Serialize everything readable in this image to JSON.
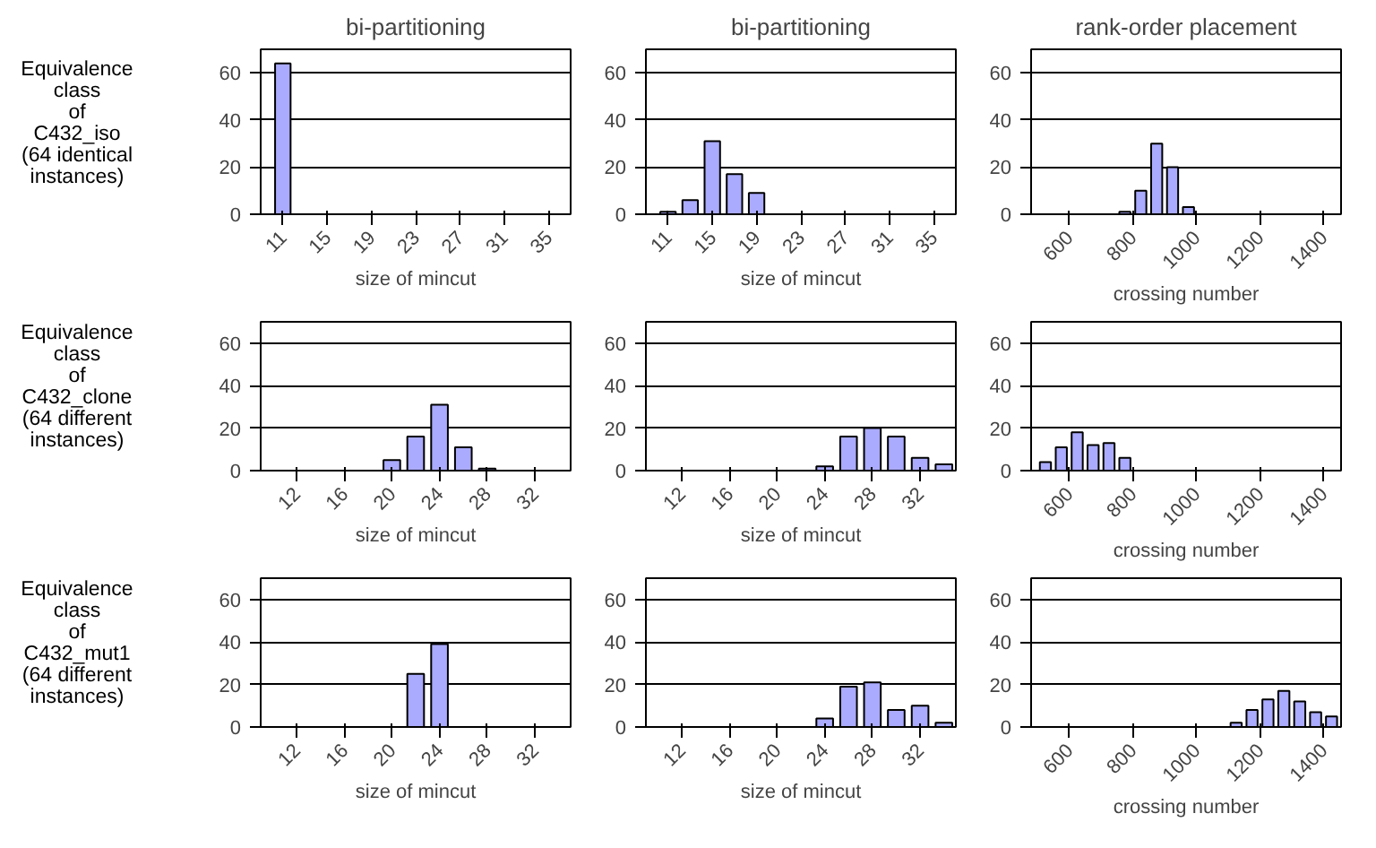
{
  "chart_data": [
    {
      "type": "bar",
      "title": "bi-partitioning",
      "ylabel": "Equivalence\nclass\nof\nC432_iso\n(64 identical\ninstances)",
      "xlabel": "size of mincut",
      "x": [
        11,
        13,
        15,
        17,
        19,
        21,
        23,
        25,
        27,
        29,
        31,
        33,
        35
      ],
      "values": [
        64,
        0,
        0,
        0,
        0,
        0,
        0,
        0,
        0,
        0,
        0,
        0,
        0
      ],
      "color": "#aaaaff",
      "xlim": [
        9,
        37
      ],
      "xticks": [
        11,
        15,
        19,
        23,
        27,
        31,
        35
      ],
      "ylim": [
        0,
        70
      ],
      "yticks": [
        0,
        20,
        40,
        60
      ],
      "grid": "y"
    },
    {
      "type": "bar",
      "title": "bi-partitioning",
      "xlabel": "size of mincut",
      "x": [
        11,
        13,
        15,
        17,
        19,
        21,
        23,
        25,
        27,
        29,
        31,
        33,
        35
      ],
      "values": [
        1,
        6,
        31,
        17,
        9,
        0,
        0,
        0,
        0,
        0,
        0,
        0,
        0
      ],
      "color": "#aaaaff",
      "xlim": [
        9,
        37
      ],
      "xticks": [
        11,
        15,
        19,
        23,
        27,
        31,
        35
      ],
      "ylim": [
        0,
        70
      ],
      "yticks": [
        0,
        20,
        40,
        60
      ],
      "grid": "y"
    },
    {
      "type": "bar",
      "title": "rank-order placement",
      "xlabel": "crossing number",
      "x": [
        525,
        575,
        625,
        675,
        725,
        775,
        825,
        875,
        925,
        975,
        1025,
        1075,
        1125,
        1175,
        1225,
        1275,
        1325,
        1375,
        1425
      ],
      "values": [
        0,
        0,
        0,
        0,
        0,
        1,
        10,
        30,
        20,
        3,
        0,
        0,
        0,
        0,
        0,
        0,
        0,
        0,
        0
      ],
      "color": "#aaaaff",
      "xlim": [
        480,
        1455
      ],
      "xticks": [
        600,
        800,
        1000,
        1200,
        1400
      ],
      "ylim": [
        0,
        70
      ],
      "yticks": [
        0,
        20,
        40,
        60
      ],
      "grid": "y"
    },
    {
      "type": "bar",
      "ylabel": "Equivalence\nclass\nof\nC432_clone\n(64 different\ninstances)",
      "xlabel": "size of mincut",
      "x": [
        10,
        12,
        14,
        16,
        18,
        20,
        22,
        24,
        26,
        28,
        30,
        32,
        34
      ],
      "values": [
        0,
        0,
        0,
        0,
        0,
        5,
        16,
        31,
        11,
        1,
        0,
        0,
        0
      ],
      "color": "#aaaaff",
      "xlim": [
        9,
        35
      ],
      "xticks": [
        12,
        16,
        20,
        24,
        28,
        32
      ],
      "ylim": [
        0,
        70
      ],
      "yticks": [
        0,
        20,
        40,
        60
      ],
      "grid": "y"
    },
    {
      "type": "bar",
      "xlabel": "size of mincut",
      "x": [
        10,
        12,
        14,
        16,
        18,
        20,
        22,
        24,
        26,
        28,
        30,
        32,
        34
      ],
      "values": [
        0,
        0,
        0,
        0,
        0,
        0,
        0,
        2,
        16,
        20,
        16,
        6,
        3
      ],
      "color": "#aaaaff",
      "xlim": [
        9,
        35
      ],
      "xticks": [
        12,
        16,
        20,
        24,
        28,
        32
      ],
      "ylim": [
        0,
        70
      ],
      "yticks": [
        0,
        20,
        40,
        60
      ],
      "grid": "y"
    },
    {
      "type": "bar",
      "xlabel": "crossing number",
      "x": [
        525,
        575,
        625,
        675,
        725,
        775,
        825,
        875,
        925,
        975,
        1025,
        1075,
        1125,
        1175,
        1225,
        1275,
        1325,
        1375,
        1425
      ],
      "values": [
        4,
        11,
        18,
        12,
        13,
        6,
        0,
        0,
        0,
        0,
        0,
        0,
        0,
        0,
        0,
        0,
        0,
        0,
        0
      ],
      "color": "#aaaaff",
      "xlim": [
        480,
        1455
      ],
      "xticks": [
        600,
        800,
        1000,
        1200,
        1400
      ],
      "ylim": [
        0,
        70
      ],
      "yticks": [
        0,
        20,
        40,
        60
      ],
      "grid": "y"
    },
    {
      "type": "bar",
      "ylabel": "Equivalence\nclass\nof\nC432_mut1\n(64 different\ninstances)",
      "xlabel": "size of mincut",
      "x": [
        10,
        12,
        14,
        16,
        18,
        20,
        22,
        24,
        26,
        28,
        30,
        32,
        34
      ],
      "values": [
        0,
        0,
        0,
        0,
        0,
        0,
        25,
        39,
        0,
        0,
        0,
        0,
        0
      ],
      "color": "#aaaaff",
      "xlim": [
        9,
        35
      ],
      "xticks": [
        12,
        16,
        20,
        24,
        28,
        32
      ],
      "ylim": [
        0,
        70
      ],
      "yticks": [
        0,
        20,
        40,
        60
      ],
      "grid": "y"
    },
    {
      "type": "bar",
      "xlabel": "size of mincut",
      "x": [
        10,
        12,
        14,
        16,
        18,
        20,
        22,
        24,
        26,
        28,
        30,
        32,
        34
      ],
      "values": [
        0,
        0,
        0,
        0,
        0,
        0,
        0,
        4,
        19,
        21,
        8,
        10,
        2
      ],
      "color": "#aaaaff",
      "xlim": [
        9,
        35
      ],
      "xticks": [
        12,
        16,
        20,
        24,
        28,
        32
      ],
      "ylim": [
        0,
        70
      ],
      "yticks": [
        0,
        20,
        40,
        60
      ],
      "grid": "y"
    },
    {
      "type": "bar",
      "xlabel": "crossing number",
      "x": [
        525,
        575,
        625,
        675,
        725,
        775,
        825,
        875,
        925,
        975,
        1025,
        1075,
        1125,
        1175,
        1225,
        1275,
        1325,
        1375,
        1425
      ],
      "values": [
        0,
        0,
        0,
        0,
        0,
        0,
        0,
        0,
        0,
        0,
        0,
        0,
        2,
        8,
        13,
        17,
        12,
        7,
        5
      ],
      "color": "#aaaaff",
      "xlim": [
        480,
        1455
      ],
      "xticks": [
        600,
        800,
        1000,
        1200,
        1400
      ],
      "ylim": [
        0,
        70
      ],
      "yticks": [
        0,
        20,
        40,
        60
      ],
      "grid": "y"
    }
  ]
}
